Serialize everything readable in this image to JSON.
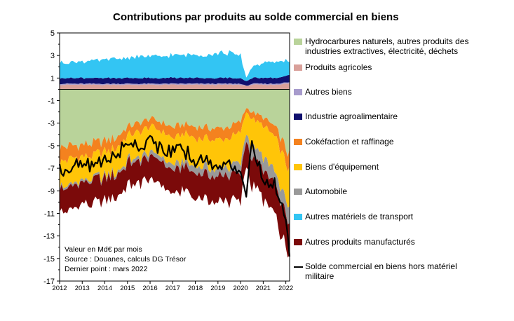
{
  "chart_data": {
    "type": "area",
    "subtype": "stacked-area-with-line",
    "title": "Contributions par produits au solde commercial en biens",
    "xlabel": "",
    "ylabel": "",
    "x_tick_labels": [
      "2012",
      "2013",
      "2014",
      "2015",
      "2016",
      "2017",
      "2018",
      "2019",
      "2020",
      "2021",
      "2022"
    ],
    "y_ticks": [
      5,
      3,
      1,
      -1,
      -3,
      -5,
      -7,
      -9,
      -11,
      -13,
      -15,
      -17
    ],
    "ylim": [
      -17,
      5
    ],
    "xlim": [
      "2012-01",
      "2022-03"
    ],
    "grid": false,
    "legend_position": "right",
    "notes": [
      "Valeur en Md€ par mois",
      "Source : Douanes, calculs DG Trésor",
      "Dernier point : mars 2022"
    ],
    "dates": [
      "2012-01",
      "2012-07",
      "2013-01",
      "2013-07",
      "2014-01",
      "2014-07",
      "2015-01",
      "2015-07",
      "2016-01",
      "2016-07",
      "2017-01",
      "2017-07",
      "2018-01",
      "2018-07",
      "2019-01",
      "2019-07",
      "2020-01",
      "2020-04",
      "2020-07",
      "2021-01",
      "2021-07",
      "2022-01",
      "2022-03"
    ],
    "series": [
      {
        "name": "Hydrocarbures naturels, autres produits des industries extractives, électricité, déchets",
        "color": "#b9d39a",
        "values": [
          -5.2,
          -5.0,
          -4.9,
          -4.8,
          -4.6,
          -4.3,
          -3.3,
          -3.0,
          -2.6,
          -2.9,
          -3.4,
          -3.1,
          -3.3,
          -3.4,
          -3.5,
          -3.3,
          -2.9,
          -1.6,
          -2.0,
          -2.5,
          -3.3,
          -5.2,
          -5.9
        ]
      },
      {
        "name": "Produits agricoles",
        "color": "#d9a09a",
        "values": [
          0.4,
          0.4,
          0.4,
          0.4,
          0.4,
          0.4,
          0.4,
          0.4,
          0.4,
          0.4,
          0.4,
          0.4,
          0.4,
          0.4,
          0.4,
          0.4,
          0.4,
          0.3,
          0.4,
          0.4,
          0.4,
          0.5,
          0.5
        ]
      },
      {
        "name": "Autres biens",
        "color": "#a79bcc",
        "values": [
          0.1,
          0.1,
          0.1,
          0.1,
          0.1,
          0.1,
          0.1,
          0.1,
          0.1,
          0.1,
          0.1,
          0.1,
          0.1,
          0.1,
          0.1,
          0.1,
          0.1,
          0.0,
          0.1,
          0.1,
          0.1,
          0.1,
          0.1
        ]
      },
      {
        "name": "Industrie agroalimentaire",
        "color": "#10106e",
        "values": [
          0.5,
          0.5,
          0.5,
          0.5,
          0.5,
          0.5,
          0.5,
          0.5,
          0.5,
          0.5,
          0.5,
          0.5,
          0.5,
          0.5,
          0.5,
          0.5,
          0.5,
          0.4,
          0.5,
          0.5,
          0.5,
          0.6,
          0.6
        ]
      },
      {
        "name": "Cokéfaction et raffinage",
        "color": "#f4821f",
        "values": [
          -1.2,
          -1.2,
          -1.1,
          -1.1,
          -1.0,
          -1.0,
          -0.8,
          -0.8,
          -0.7,
          -0.8,
          -0.9,
          -0.9,
          -1.0,
          -1.0,
          -1.0,
          -1.0,
          -0.9,
          -0.4,
          -0.6,
          -0.7,
          -0.9,
          -1.2,
          -1.5
        ]
      },
      {
        "name": "Biens d'équipement",
        "color": "#ffc508",
        "values": [
          -2.2,
          -2.2,
          -2.2,
          -2.1,
          -2.1,
          -2.2,
          -2.2,
          -2.3,
          -2.3,
          -2.3,
          -2.4,
          -2.4,
          -2.5,
          -2.5,
          -2.5,
          -2.6,
          -2.7,
          -2.0,
          -2.5,
          -2.8,
          -3.0,
          -3.4,
          -3.6
        ]
      },
      {
        "name": "Automobile",
        "color": "#999999",
        "values": [
          -0.2,
          -0.2,
          -0.2,
          -0.2,
          -0.2,
          -0.2,
          -0.3,
          -0.3,
          -0.4,
          -0.4,
          -0.5,
          -0.5,
          -0.6,
          -0.6,
          -0.7,
          -0.8,
          -0.9,
          -0.7,
          -1.0,
          -1.1,
          -1.2,
          -1.3,
          -1.4
        ]
      },
      {
        "name": "Autres matériels de transport",
        "color": "#33c5f3",
        "values": [
          1.4,
          1.4,
          1.5,
          1.5,
          1.6,
          1.7,
          1.8,
          1.9,
          1.9,
          1.9,
          2.0,
          2.0,
          2.1,
          2.1,
          2.2,
          2.2,
          2.0,
          0.3,
          1.0,
          1.3,
          1.4,
          1.4,
          1.2
        ]
      },
      {
        "name": "Autres produits manufacturés",
        "color": "#7b0a0a",
        "values": [
          -2.0,
          -2.0,
          -2.0,
          -2.0,
          -2.0,
          -2.0,
          -2.0,
          -2.0,
          -2.1,
          -2.1,
          -2.1,
          -2.1,
          -2.2,
          -2.2,
          -2.3,
          -2.3,
          -2.4,
          -2.2,
          -2.5,
          -2.6,
          -2.7,
          -2.9,
          -3.0
        ]
      },
      {
        "name": "Solde commercial en biens hors matériel militaire",
        "color": "#000000",
        "type": "line",
        "values": [
          -7.2,
          -6.8,
          -6.8,
          -6.6,
          -6.3,
          -5.9,
          -4.6,
          -5.0,
          -4.5,
          -5.2,
          -5.6,
          -5.5,
          -6.2,
          -6.4,
          -6.6,
          -6.9,
          -6.8,
          -9.4,
          -5.2,
          -8.0,
          -8.3,
          -11.3,
          -14.2
        ]
      }
    ],
    "legend": [
      {
        "label": "Hydrocarbures naturels, autres produits des industries extractives, électricité, déchets",
        "color": "#b9d39a"
      },
      {
        "label": "Produits agricoles",
        "color": "#d9a09a"
      },
      {
        "label": "Autres biens",
        "color": "#a79bcc"
      },
      {
        "label": "Industrie agroalimentaire",
        "color": "#10106e"
      },
      {
        "label": "Cokéfaction et raffinage",
        "color": "#f4821f"
      },
      {
        "label": "Biens d'équipement",
        "color": "#ffc508"
      },
      {
        "label": "Automobile",
        "color": "#999999"
      },
      {
        "label": "Autres matériels de transport",
        "color": "#33c5f3"
      },
      {
        "label": "Autres produits manufacturés",
        "color": "#7b0a0a"
      },
      {
        "label": "Solde commercial en biens hors matériel militaire",
        "color": "#000000",
        "kind": "line"
      }
    ]
  }
}
